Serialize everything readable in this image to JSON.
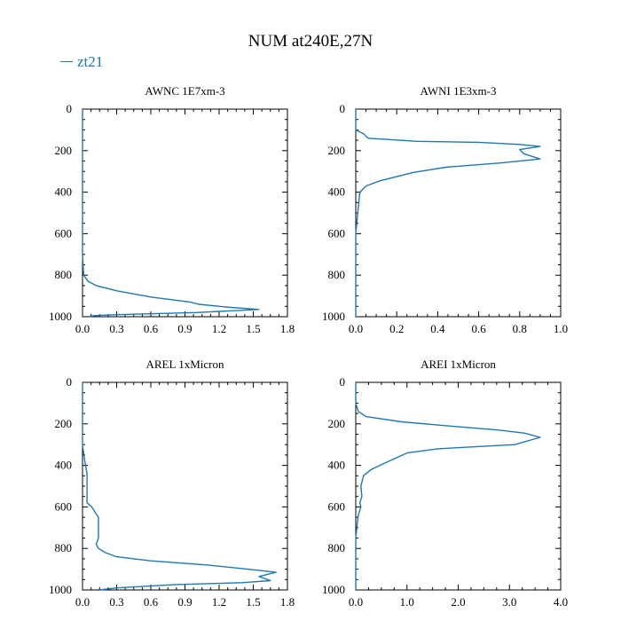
{
  "figure": {
    "title": "NUM at240E,27N",
    "legend": "zt21",
    "line_color": "#1f77b4"
  },
  "chart_data": [
    {
      "type": "line",
      "title": "AWNC  1E7xm-3",
      "xlim": [
        0,
        1.8
      ],
      "ylim": [
        1000,
        0
      ],
      "xticks": [
        "0.0",
        "0.3",
        "0.6",
        "0.9",
        "1.2",
        "1.5",
        "1.8"
      ],
      "yticks": [
        "0",
        "200",
        "400",
        "600",
        "800",
        "1000"
      ],
      "series": [
        {
          "values": [
            [
              0,
              0
            ],
            [
              0,
              100
            ],
            [
              0,
              300
            ],
            [
              0,
              500
            ],
            [
              0,
              700
            ],
            [
              0.01,
              800
            ],
            [
              0.05,
              830
            ],
            [
              0.12,
              850
            ],
            [
              0.3,
              875
            ],
            [
              0.6,
              905
            ],
            [
              0.95,
              930
            ],
            [
              1.02,
              940
            ],
            [
              1.3,
              955
            ],
            [
              1.55,
              965
            ],
            [
              1.0,
              980
            ],
            [
              0.3,
              990
            ],
            [
              0.1,
              995
            ],
            [
              0.05,
              1000
            ]
          ]
        }
      ]
    },
    {
      "type": "line",
      "title": "AWNI  1E3xm-3",
      "xlim": [
        0,
        1.0
      ],
      "ylim": [
        1000,
        0
      ],
      "xticks": [
        "0.0",
        "0.2",
        "0.4",
        "0.6",
        "0.8",
        "1.0"
      ],
      "yticks": [
        "0",
        "200",
        "400",
        "600",
        "800",
        "1000"
      ],
      "series": [
        {
          "values": [
            [
              0,
              0
            ],
            [
              0,
              100
            ],
            [
              0.04,
              120
            ],
            [
              0.06,
              140
            ],
            [
              0.3,
              155
            ],
            [
              0.6,
              160
            ],
            [
              0.8,
              170
            ],
            [
              0.9,
              180
            ],
            [
              0.8,
              195
            ],
            [
              0.82,
              215
            ],
            [
              0.9,
              240
            ],
            [
              0.7,
              260
            ],
            [
              0.44,
              280
            ],
            [
              0.28,
              305
            ],
            [
              0.12,
              345
            ],
            [
              0.05,
              370
            ],
            [
              0.02,
              400
            ],
            [
              0.01,
              500
            ],
            [
              0,
              600
            ],
            [
              0,
              700
            ],
            [
              0,
              800
            ],
            [
              0,
              1000
            ]
          ]
        }
      ]
    },
    {
      "type": "line",
      "title": "AREL  1xMicron",
      "xlim": [
        0,
        1.8
      ],
      "ylim": [
        1000,
        0
      ],
      "xticks": [
        "0.0",
        "0.3",
        "0.6",
        "0.9",
        "1.2",
        "1.5",
        "1.8"
      ],
      "yticks": [
        "0",
        "200",
        "400",
        "600",
        "800",
        "1000"
      ],
      "series": [
        {
          "values": [
            [
              0,
              0
            ],
            [
              0,
              200
            ],
            [
              0,
              300
            ],
            [
              0.02,
              380
            ],
            [
              0.04,
              440
            ],
            [
              0.04,
              500
            ],
            [
              0.04,
              580
            ],
            [
              0.08,
              600
            ],
            [
              0.14,
              650
            ],
            [
              0.14,
              750
            ],
            [
              0.12,
              780
            ],
            [
              0.14,
              800
            ],
            [
              0.2,
              820
            ],
            [
              0.3,
              840
            ],
            [
              0.6,
              860
            ],
            [
              1.1,
              880
            ],
            [
              1.45,
              900
            ],
            [
              1.7,
              915
            ],
            [
              1.55,
              935
            ],
            [
              1.65,
              955
            ],
            [
              1.4,
              965
            ],
            [
              0.8,
              975
            ],
            [
              0.3,
              990
            ],
            [
              0.15,
              1000
            ]
          ]
        }
      ]
    },
    {
      "type": "line",
      "title": "AREI  1xMicron",
      "xlim": [
        0,
        4.0
      ],
      "ylim": [
        1000,
        0
      ],
      "xticks": [
        "0.0",
        "1.0",
        "2.0",
        "3.0",
        "4.0"
      ],
      "yticks": [
        "0",
        "200",
        "400",
        "600",
        "800",
        "1000"
      ],
      "series": [
        {
          "values": [
            [
              0,
              0
            ],
            [
              0,
              100
            ],
            [
              0.05,
              140
            ],
            [
              0.2,
              165
            ],
            [
              0.9,
              190
            ],
            [
              1.8,
              210
            ],
            [
              2.8,
              230
            ],
            [
              3.3,
              245
            ],
            [
              3.6,
              265
            ],
            [
              3.1,
              300
            ],
            [
              1.6,
              320
            ],
            [
              1.0,
              340
            ],
            [
              0.6,
              385
            ],
            [
              0.3,
              420
            ],
            [
              0.15,
              450
            ],
            [
              0.1,
              500
            ],
            [
              0.12,
              550
            ],
            [
              0.08,
              580
            ],
            [
              0.1,
              600
            ],
            [
              0.05,
              640
            ],
            [
              0.02,
              700
            ],
            [
              0,
              750
            ],
            [
              0,
              850
            ],
            [
              0,
              1000
            ]
          ]
        }
      ]
    }
  ]
}
